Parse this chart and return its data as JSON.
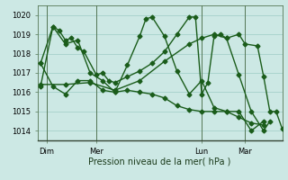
{
  "background_color": "#cce8e4",
  "grid_color": "#aad4ce",
  "line_color": "#1a5c1a",
  "marker_style": "D",
  "marker_size": 2.5,
  "line_width": 1.0,
  "x_tick_labels": [
    "Dim",
    "Mer",
    "Lun",
    "Mar"
  ],
  "x_tick_positions": [
    1,
    9,
    26,
    33
  ],
  "x_vlines": [
    1,
    9,
    26,
    33
  ],
  "xlim": [
    -0.5,
    39
  ],
  "ylim": [
    1013.5,
    1020.5
  ],
  "yticks": [
    1014,
    1015,
    1016,
    1017,
    1018,
    1019,
    1020
  ],
  "xlabel": "Pression niveau de la mer( hPa )",
  "series": [
    [
      0,
      1017.5,
      2,
      1016.3,
      4,
      1015.9,
      6,
      1016.6,
      8,
      1016.6,
      10,
      1016.1,
      12,
      1016.0,
      14,
      1016.1,
      16,
      1016.0,
      18,
      1015.9,
      20,
      1015.7,
      22,
      1015.3,
      24,
      1015.1,
      26,
      1015.0,
      28,
      1015.0,
      30,
      1015.0,
      32,
      1014.7,
      34,
      1014.4,
      36,
      1014.3
    ],
    [
      0,
      1017.5,
      2,
      1019.4,
      3,
      1019.2,
      4,
      1018.7,
      5,
      1018.8,
      6,
      1018.3,
      7,
      1018.1,
      9,
      1016.9,
      10,
      1017.0,
      11,
      1016.6,
      12,
      1016.5,
      14,
      1016.8,
      16,
      1017.1,
      18,
      1017.5,
      20,
      1018.1,
      22,
      1019.0,
      24,
      1019.9,
      25,
      1019.9,
      26,
      1015.9,
      27,
      1016.5,
      28,
      1018.9,
      29,
      1019.0,
      30,
      1018.8,
      32,
      1016.9,
      34,
      1015.0,
      36,
      1014.0,
      37,
      1014.5
    ],
    [
      0,
      1016.4,
      4,
      1016.4,
      8,
      1016.5,
      12,
      1016.1,
      16,
      1016.6,
      20,
      1017.6,
      24,
      1018.5,
      26,
      1018.8,
      28,
      1019.0,
      30,
      1018.8,
      32,
      1019.0,
      33,
      1018.5,
      35,
      1018.4,
      36,
      1016.8,
      37,
      1015.0,
      38,
      1015.0,
      39,
      1014.1
    ],
    [
      0,
      1016.3,
      2,
      1019.4,
      4,
      1018.5,
      6,
      1018.7,
      8,
      1017.0,
      10,
      1016.6,
      12,
      1016.0,
      14,
      1017.4,
      16,
      1018.9,
      17,
      1019.8,
      18,
      1019.9,
      20,
      1018.9,
      22,
      1017.1,
      24,
      1015.9,
      26,
      1016.6,
      28,
      1015.2,
      30,
      1015.0,
      32,
      1015.0,
      34,
      1014.0,
      36,
      1014.5
    ]
  ]
}
